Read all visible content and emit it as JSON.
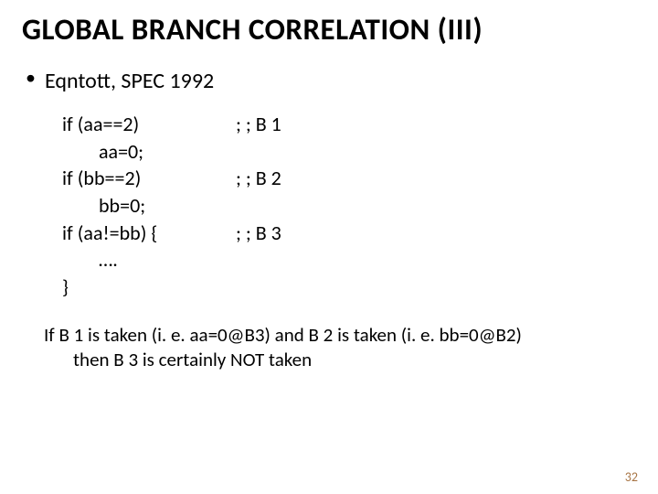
{
  "title": "GLOBAL BRANCH CORRELATION (III)",
  "bullet": "Eqntott, SPEC 1992",
  "code": [
    {
      "left": "if (aa==2)",
      "left_indent": false,
      "right": "; ; B 1"
    },
    {
      "left": "aa=0;",
      "left_indent": true,
      "right": ""
    },
    {
      "left": "if (bb==2)",
      "left_indent": false,
      "right": "; ; B 2"
    },
    {
      "left": "bb=0;",
      "left_indent": true,
      "right": ""
    },
    {
      "left": "if (aa!=bb) {",
      "left_indent": false,
      "right": "; ; B 3"
    },
    {
      "left": "….",
      "left_indent": true,
      "right": ""
    },
    {
      "left": "}",
      "left_indent": false,
      "right": ""
    }
  ],
  "explain_line1": "If B 1 is taken (i. e. aa=0@B3) and B 2 is taken (i. e. bb=0@B2)",
  "explain_line2": "then B 3 is certainly NOT taken",
  "pagenum": "32",
  "colors": {
    "bg": "#ffffff",
    "text": "#000000",
    "pagenum": "#a87646"
  }
}
